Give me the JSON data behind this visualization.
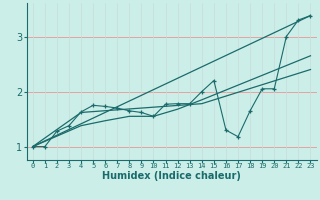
{
  "xlabel": "Humidex (Indice chaleur)",
  "bg_color": "#cceee8",
  "line_color": "#1a6b6b",
  "grid_color_major": "#f0c0c0",
  "grid_color_minor": "#d8e8e0",
  "xlim": [
    -0.5,
    23.5
  ],
  "ylim": [
    0.75,
    3.6
  ],
  "yticks": [
    1,
    2,
    3
  ],
  "xticks": [
    0,
    1,
    2,
    3,
    4,
    5,
    6,
    7,
    8,
    9,
    10,
    11,
    12,
    13,
    14,
    15,
    16,
    17,
    18,
    19,
    20,
    21,
    22,
    23
  ],
  "series_zigzag": [
    0,
    1.0,
    1,
    1.0,
    2,
    1.28,
    3,
    1.38,
    4,
    1.63,
    5,
    1.75,
    6,
    1.73,
    7,
    1.7,
    8,
    1.65,
    9,
    1.62,
    10,
    1.55,
    11,
    1.77,
    12,
    1.78,
    13,
    1.78,
    14,
    2.0,
    15,
    2.2,
    16,
    1.3,
    17,
    1.18,
    18,
    1.65,
    19,
    2.05,
    20,
    2.05,
    21,
    3.0,
    22,
    3.3,
    23,
    3.38
  ],
  "series_line1": [
    0,
    1.0,
    23,
    3.38
  ],
  "series_line2": [
    0,
    1.0,
    4,
    1.62,
    14,
    1.78,
    23,
    2.4
  ],
  "series_line3": [
    0,
    1.0,
    4,
    1.38,
    6,
    1.47,
    8,
    1.55,
    10,
    1.55,
    12,
    1.68,
    14,
    1.85,
    23,
    2.65
  ]
}
